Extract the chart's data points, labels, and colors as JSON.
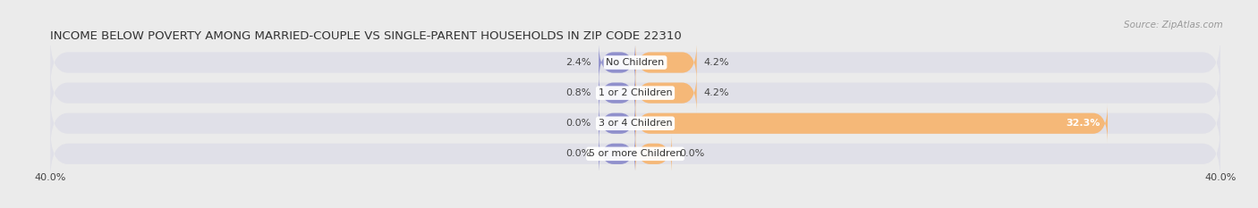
{
  "title": "INCOME BELOW POVERTY AMONG MARRIED-COUPLE VS SINGLE-PARENT HOUSEHOLDS IN ZIP CODE 22310",
  "source": "Source: ZipAtlas.com",
  "categories": [
    "No Children",
    "1 or 2 Children",
    "3 or 4 Children",
    "5 or more Children"
  ],
  "married_values": [
    2.4,
    0.8,
    0.0,
    0.0
  ],
  "single_values": [
    4.2,
    4.2,
    32.3,
    0.0
  ],
  "married_color": "#9090cc",
  "single_color": "#f5b878",
  "x_min": -40.0,
  "x_max": 40.0,
  "x_tick_labels": [
    "40.0%",
    "40.0%"
  ],
  "bar_height": 0.68,
  "min_bar_width": 2.5,
  "background_color": "#ebebeb",
  "bar_background_color": "#e0e0e8",
  "title_fontsize": 9.5,
  "source_fontsize": 7.5,
  "label_fontsize": 8,
  "category_fontsize": 8,
  "value_fontsize": 8
}
